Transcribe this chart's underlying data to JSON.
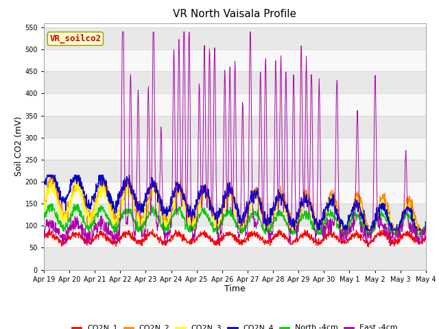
{
  "title": "VR North Vaisala Profile",
  "xlabel": "Time",
  "ylabel": "Soil CO2 (mV)",
  "annotation": "VR_soilco2",
  "ylim": [
    0,
    560
  ],
  "yticks": [
    0,
    50,
    100,
    150,
    200,
    250,
    300,
    350,
    400,
    450,
    500,
    550
  ],
  "xtick_labels": [
    "Apr 19",
    "Apr 20",
    "Apr 21",
    "Apr 22",
    "Apr 23",
    "Apr 24",
    "Apr 25",
    "Apr 26",
    "Apr 27",
    "Apr 28",
    "Apr 29",
    "Apr 30",
    "May 1",
    "May 2",
    "May 3",
    "May 4"
  ],
  "colors": {
    "CO2N_1": "#ff0000",
    "CO2N_2": "#ff8800",
    "CO2N_3": "#ffff00",
    "CO2N_4": "#0000cc",
    "North_4cm": "#00cc00",
    "East_4cm": "#aa00aa"
  },
  "band_colors": [
    "#e8e8e8",
    "#f8f8f8"
  ],
  "title_fontsize": 11,
  "annotation_fontsize": 9,
  "tick_fontsize": 7,
  "legend_fontsize": 8
}
